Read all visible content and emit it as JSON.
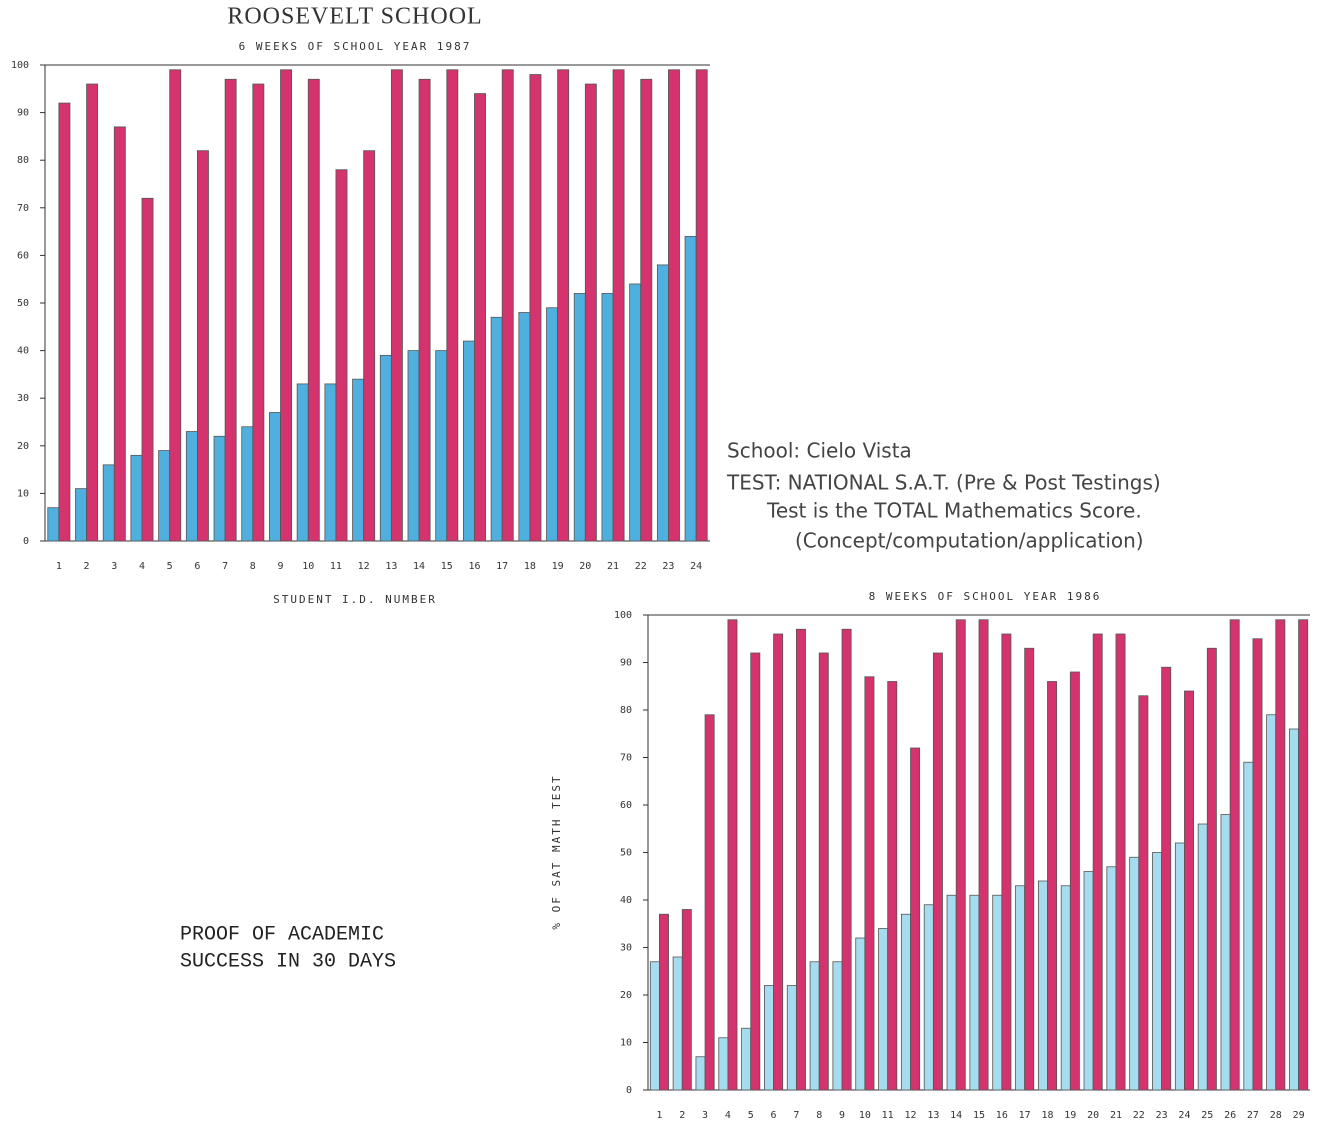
{
  "chart_data": [
    {
      "type": "bar",
      "title": "ROOSEVELT SCHOOL",
      "subtitle": "6 WEEKS OF SCHOOL YEAR 1987",
      "x_label": "STUDENT I.D. NUMBER",
      "categories": [
        "1",
        "2",
        "3",
        "4",
        "5",
        "6",
        "7",
        "8",
        "9",
        "10",
        "11",
        "12",
        "13",
        "14",
        "15",
        "16",
        "17",
        "18",
        "19",
        "20",
        "21",
        "22",
        "23",
        "24"
      ],
      "series": [
        {
          "color": "#4fb0df",
          "values": [
            7,
            11,
            16,
            18,
            19,
            23,
            22,
            24,
            27,
            33,
            33,
            34,
            39,
            40,
            40,
            42,
            47,
            48,
            49,
            52,
            52,
            54,
            58,
            64
          ]
        },
        {
          "color": "#d4336e",
          "values": [
            92,
            96,
            87,
            72,
            99,
            82,
            97,
            96,
            99,
            97,
            78,
            82,
            99,
            97,
            99,
            94,
            99,
            98,
            99,
            96,
            99,
            97,
            99,
            99
          ]
        }
      ],
      "ylim": [
        0,
        100
      ],
      "yticks": [
        0,
        10,
        20,
        30,
        40,
        50,
        60,
        70,
        80,
        90,
        100
      ]
    },
    {
      "type": "bar",
      "subtitle": "8 WEEKS OF SCHOOL YEAR 1986",
      "y_label": "% OF SAT MATH TEST",
      "categories": [
        "1",
        "2",
        "3",
        "4",
        "5",
        "6",
        "7",
        "8",
        "9",
        "10",
        "11",
        "12",
        "13",
        "14",
        "15",
        "16",
        "17",
        "18",
        "19",
        "20",
        "21",
        "22",
        "23",
        "24",
        "25",
        "26",
        "27",
        "28",
        "29"
      ],
      "series": [
        {
          "color": "#a6dcf0",
          "values": [
            27,
            28,
            7,
            11,
            13,
            22,
            22,
            27,
            27,
            32,
            34,
            37,
            39,
            41,
            41,
            41,
            43,
            44,
            43,
            46,
            47,
            49,
            50,
            52,
            56,
            58,
            69,
            79,
            76
          ]
        },
        {
          "color": "#d4336e",
          "values": [
            37,
            38,
            79,
            99,
            92,
            96,
            97,
            92,
            97,
            87,
            86,
            72,
            92,
            99,
            99,
            96,
            93,
            86,
            88,
            96,
            96,
            83,
            89,
            84,
            93,
            99,
            95,
            99,
            99
          ]
        }
      ],
      "ylim": [
        0,
        100
      ],
      "yticks": [
        0,
        10,
        20,
        30,
        40,
        50,
        60,
        70,
        80,
        90,
        100
      ],
      "annotations": [
        "School:  Cielo Vista",
        "TEST: NATIONAL S.A.T. (Pre & Post Testings)",
        "Test is the TOTAL Mathematics Score.",
        "(Concept/computation/application)",
        "PROOF OF ACADEMIC",
        "SUCCESS IN 30 DAYS"
      ]
    }
  ]
}
